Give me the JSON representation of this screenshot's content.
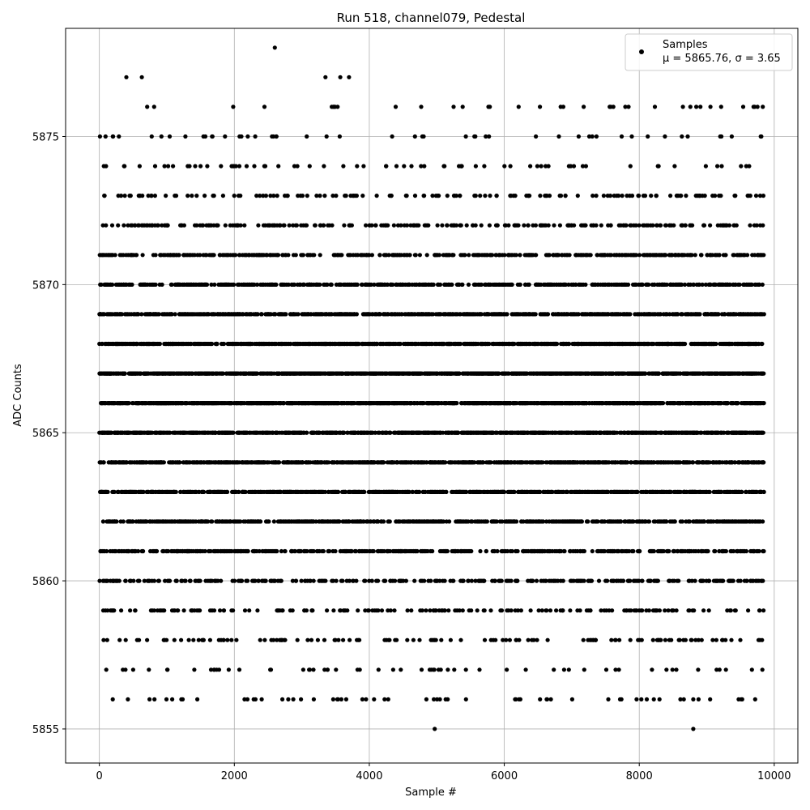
{
  "chart_data": {
    "type": "scatter",
    "title": "Run 518, channel079, Pedestal",
    "xlabel": "Sample #",
    "ylabel": "ADC Counts",
    "xlim": [
      -500,
      10350
    ],
    "ylim": [
      5853.85,
      5878.65
    ],
    "xticks": [
      0,
      2000,
      4000,
      6000,
      8000,
      10000
    ],
    "yticks": [
      5855,
      5860,
      5865,
      5870,
      5875
    ],
    "x_tick_labels": [
      "0",
      "2000",
      "4000",
      "6000",
      "8000",
      "10000"
    ],
    "y_tick_labels": [
      "5855",
      "5860",
      "5865",
      "5870",
      "5875"
    ],
    "grid": true,
    "legend_position": "top-right",
    "marker_color": "#000000",
    "series": [
      {
        "name": "Samples",
        "stats_label": "μ = 5865.76, σ = 3.65",
        "mean": 5865.76,
        "sigma": 3.65,
        "n_samples": 9850,
        "description": "Per-sample ADC count; values are integers concentrated between 5861 and 5871.",
        "value_range": [
          5855,
          5878
        ],
        "notable_points": [
          {
            "x": 2600,
            "y": 5878
          },
          {
            "x": 400,
            "y": 5877
          },
          {
            "x": 630,
            "y": 5877
          },
          {
            "x": 3350,
            "y": 5877
          },
          {
            "x": 3570,
            "y": 5877
          },
          {
            "x": 3700,
            "y": 5877
          },
          {
            "x": 9830,
            "y": 5876
          },
          {
            "x": 2800,
            "y": 5856
          },
          {
            "x": 6530,
            "y": 5856
          },
          {
            "x": 6690,
            "y": 5856
          },
          {
            "x": 7960,
            "y": 5856
          },
          {
            "x": 8610,
            "y": 5856
          },
          {
            "x": 8800,
            "y": 5856
          },
          {
            "x": 9050,
            "y": 5856
          },
          {
            "x": 4970,
            "y": 5855
          },
          {
            "x": 8800,
            "y": 5855
          }
        ]
      }
    ]
  }
}
